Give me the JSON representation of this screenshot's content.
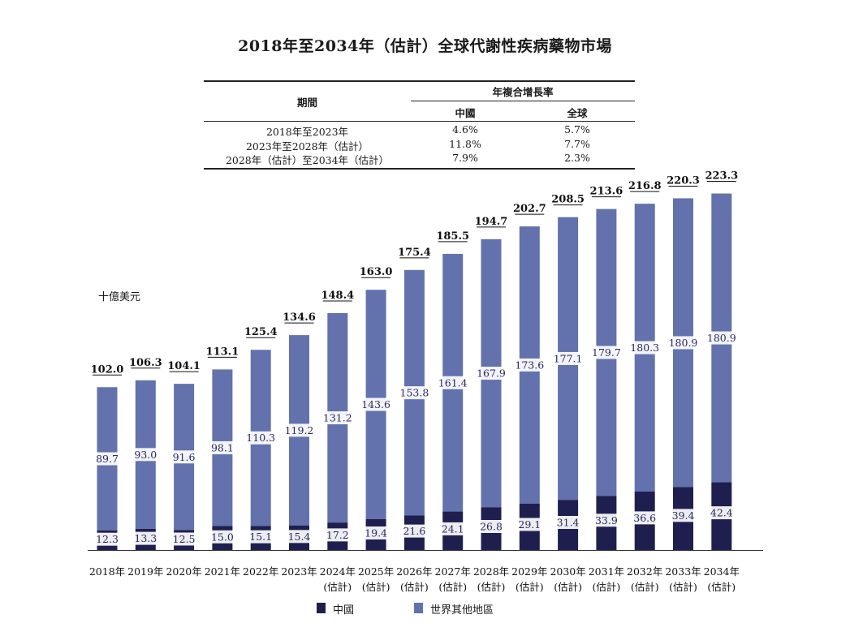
{
  "title": "2018年至2034年（估計）全球代謝性疾病藥物市場",
  "unit_label": "十億美元",
  "cagr_table": {
    "col_period": "期間",
    "col_group": "年複合增長率",
    "col_china": "中國",
    "col_global": "全球",
    "rows": [
      {
        "period": "2018年至2023年",
        "china": "4.6%",
        "global": "5.7%"
      },
      {
        "period": "2023年至2028年（估計）",
        "china": "11.8%",
        "global": "7.7%"
      },
      {
        "period": "2028年（估計）至2034年（估計）",
        "china": "7.9%",
        "global": "2.3%"
      }
    ]
  },
  "legend": {
    "china": "中國",
    "rest": "世界其他地區"
  },
  "colors": {
    "china": "#1f1f4f",
    "rest": "#6372ad"
  },
  "chart_data": {
    "type": "bar",
    "stacked": true,
    "title": "2018年至2034年（估計）全球代謝性疾病藥物市場",
    "ylabel": "十億美元",
    "categories": [
      "2018年",
      "2019年",
      "2020年",
      "2021年",
      "2022年",
      "2023年",
      "2024年\n(估計)",
      "2025年\n(估計)",
      "2026年\n(估計)",
      "2027年\n(估計)",
      "2028年\n(估計)",
      "2029年\n(估計)",
      "2030年\n(估計)",
      "2031年\n(估計)",
      "2032年\n(估計)",
      "2033年\n(估計)",
      "2034年\n(估計)"
    ],
    "series": [
      {
        "name": "中國",
        "values": [
          12.3,
          13.3,
          12.5,
          15.0,
          15.1,
          15.4,
          17.2,
          19.4,
          21.6,
          24.1,
          26.8,
          29.1,
          31.4,
          33.9,
          36.6,
          39.4,
          42.4
        ]
      },
      {
        "name": "世界其他地區",
        "values": [
          89.7,
          93.0,
          91.6,
          98.1,
          110.3,
          119.2,
          131.2,
          143.6,
          153.8,
          161.4,
          167.9,
          173.6,
          177.1,
          179.7,
          180.3,
          180.9,
          180.9
        ]
      }
    ],
    "totals": [
      102.0,
      106.3,
      104.1,
      113.1,
      125.4,
      134.6,
      148.4,
      163.0,
      175.4,
      185.5,
      194.7,
      202.7,
      208.5,
      213.6,
      216.8,
      220.3,
      223.3
    ],
    "legend_position": "bottom",
    "grid": false
  }
}
